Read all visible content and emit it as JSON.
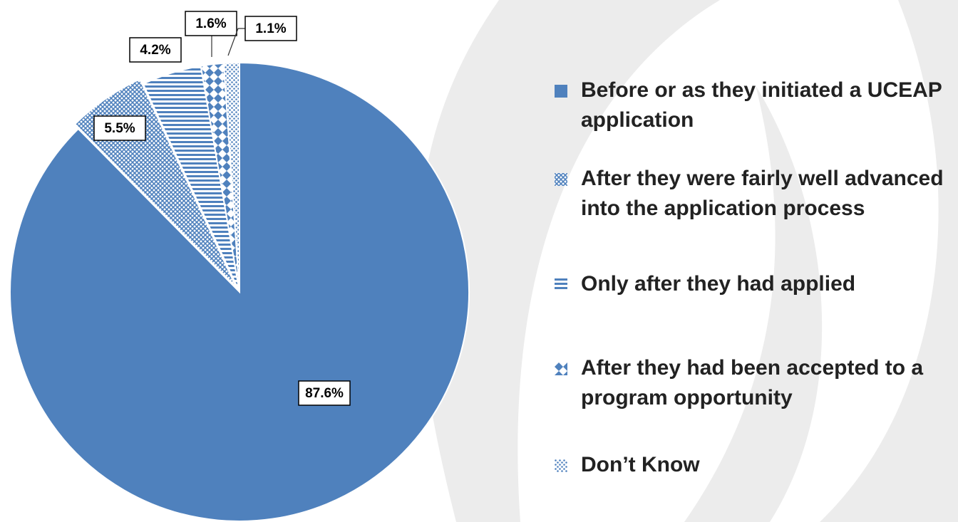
{
  "chart_data": {
    "type": "pie",
    "categories": [
      "Before or as they initiated a UCEAP application",
      "After they were fairly well advanced into the application process",
      "Only after they had applied",
      "After they had been accepted to a program opportunity",
      "Don’t Know"
    ],
    "values": [
      87.6,
      5.5,
      4.2,
      1.6,
      1.1
    ],
    "value_labels": [
      "87.6%",
      "5.5%",
      "4.2%",
      "1.6%",
      "1.1%"
    ],
    "colors": [
      "#4f81bd",
      "#4f81bd",
      "#4f81bd",
      "#4f81bd",
      "#4f81bd"
    ],
    "patterns": [
      "solid",
      "crosshatch",
      "horizontal",
      "diamond",
      "dots"
    ],
    "legend": "right"
  }
}
